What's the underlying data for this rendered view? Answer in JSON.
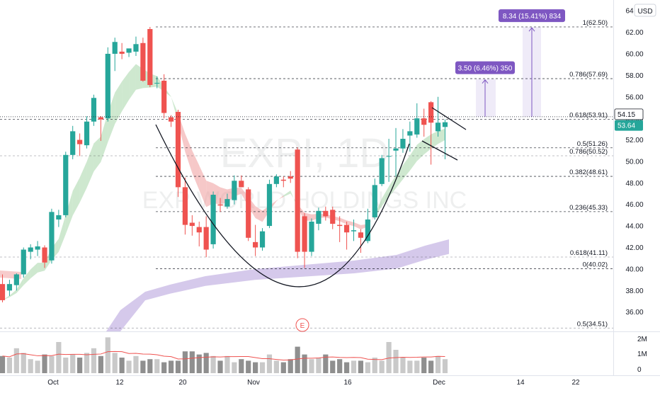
{
  "currency": "USD",
  "watermark": {
    "ticker": "EXPI, 1D",
    "name": "EXP WORLD HOLDINGS INC"
  },
  "earnings_marker": "E",
  "price_badges": [
    {
      "label": "54.15",
      "value": 54.15,
      "color": "#ffffff",
      "text_color": "#131722"
    },
    {
      "label": "53.64",
      "value": 53.64,
      "color": "#26a69a",
      "text_color": "#ffffff"
    }
  ],
  "measure_labels": [
    "3.50 (6.46%) 350",
    "8.34 (15.41%) 834"
  ],
  "colors": {
    "up": "#26a69a",
    "down": "#ef5350",
    "measure": "#7e57c2",
    "ema_band": "#a5d6a7",
    "ema_band_down": "#ef9a9a",
    "sma_band": "#b39ddb",
    "grid_text": "#131722"
  },
  "chart_data": {
    "type": "candlestick",
    "y_axis": {
      "range": [
        34.2,
        65.0
      ],
      "ticks": [
        36,
        38,
        40,
        42,
        44,
        46,
        48,
        50,
        52,
        54,
        56,
        58,
        60,
        62,
        64
      ]
    },
    "x_tick_labels": [
      "Oct",
      "12",
      "20",
      "Nov",
      "16",
      "Dec",
      "14",
      "22"
    ],
    "volume_axis": {
      "ticks": [
        "2M",
        "1M",
        "0"
      ]
    },
    "candles": [
      {
        "o": 38.6,
        "h": 39.5,
        "l": 36.9,
        "c": 37.1
      },
      {
        "o": 38.0,
        "h": 39.0,
        "l": 37.5,
        "c": 38.6
      },
      {
        "o": 38.5,
        "h": 39.6,
        "l": 38.0,
        "c": 39.5
      },
      {
        "o": 39.5,
        "h": 42.0,
        "l": 39.2,
        "c": 41.8
      },
      {
        "o": 41.6,
        "h": 42.3,
        "l": 40.9,
        "c": 42.0
      },
      {
        "o": 41.8,
        "h": 42.6,
        "l": 41.2,
        "c": 42.1
      },
      {
        "o": 42.0,
        "h": 42.2,
        "l": 40.1,
        "c": 40.6
      },
      {
        "o": 40.8,
        "h": 45.6,
        "l": 40.5,
        "c": 45.3
      },
      {
        "o": 44.6,
        "h": 45.5,
        "l": 43.9,
        "c": 45.0
      },
      {
        "o": 45.0,
        "h": 50.9,
        "l": 44.8,
        "c": 50.6
      },
      {
        "o": 50.6,
        "h": 53.3,
        "l": 50.2,
        "c": 52.8
      },
      {
        "o": 52.0,
        "h": 52.6,
        "l": 50.5,
        "c": 51.6
      },
      {
        "o": 51.5,
        "h": 54.2,
        "l": 51.2,
        "c": 53.7
      },
      {
        "o": 53.7,
        "h": 56.2,
        "l": 53.3,
        "c": 55.9
      },
      {
        "o": 54.1,
        "h": 54.2,
        "l": 51.9,
        "c": 53.9
      },
      {
        "o": 54.0,
        "h": 60.6,
        "l": 53.7,
        "c": 60.0
      },
      {
        "o": 60.0,
        "h": 61.5,
        "l": 58.4,
        "c": 61.1
      },
      {
        "o": 60.2,
        "h": 61.0,
        "l": 59.5,
        "c": 60.0
      },
      {
        "o": 60.1,
        "h": 60.4,
        "l": 59.7,
        "c": 60.5
      },
      {
        "o": 60.2,
        "h": 61.6,
        "l": 59.8,
        "c": 60.9
      },
      {
        "o": 61.0,
        "h": 61.5,
        "l": 57.4,
        "c": 57.5
      },
      {
        "o": 62.3,
        "h": 62.5,
        "l": 56.9,
        "c": 57.1
      },
      {
        "o": 57.3,
        "h": 57.9,
        "l": 56.8,
        "c": 57.3
      },
      {
        "o": 57.5,
        "h": 58.1,
        "l": 54.0,
        "c": 54.5
      },
      {
        "o": 54.1,
        "h": 54.3,
        "l": 53.2,
        "c": 53.7
      },
      {
        "o": 54.6,
        "h": 54.8,
        "l": 46.7,
        "c": 47.6
      },
      {
        "o": 47.6,
        "h": 48.5,
        "l": 43.2,
        "c": 44.1
      },
      {
        "o": 44.3,
        "h": 45.0,
        "l": 43.1,
        "c": 44.0
      },
      {
        "o": 43.9,
        "h": 44.4,
        "l": 42.1,
        "c": 43.4
      },
      {
        "o": 43.9,
        "h": 44.9,
        "l": 41.1,
        "c": 41.8
      },
      {
        "o": 42.3,
        "h": 47.2,
        "l": 41.9,
        "c": 46.9
      },
      {
        "o": 46.0,
        "h": 46.6,
        "l": 45.3,
        "c": 45.9
      },
      {
        "o": 45.8,
        "h": 47.0,
        "l": 45.6,
        "c": 46.5
      },
      {
        "o": 46.4,
        "h": 48.7,
        "l": 46.0,
        "c": 48.2
      },
      {
        "o": 48.2,
        "h": 48.7,
        "l": 47.6,
        "c": 47.6
      },
      {
        "o": 47.4,
        "h": 47.6,
        "l": 42.6,
        "c": 42.9
      },
      {
        "o": 42.5,
        "h": 44.1,
        "l": 41.2,
        "c": 42.0
      },
      {
        "o": 42.0,
        "h": 43.8,
        "l": 41.7,
        "c": 43.5
      },
      {
        "o": 44.0,
        "h": 48.3,
        "l": 43.8,
        "c": 47.9
      },
      {
        "o": 47.9,
        "h": 48.8,
        "l": 47.6,
        "c": 48.6
      },
      {
        "o": 48.3,
        "h": 48.6,
        "l": 47.6,
        "c": 48.2
      },
      {
        "o": 48.6,
        "h": 49.1,
        "l": 48.0,
        "c": 48.4
      },
      {
        "o": 51.1,
        "h": 51.3,
        "l": 41.0,
        "c": 41.6
      },
      {
        "o": 44.9,
        "h": 45.2,
        "l": 40.1,
        "c": 41.6
      },
      {
        "o": 41.6,
        "h": 44.7,
        "l": 41.2,
        "c": 44.4
      },
      {
        "o": 44.2,
        "h": 45.7,
        "l": 43.6,
        "c": 45.4
      },
      {
        "o": 45.4,
        "h": 45.8,
        "l": 44.5,
        "c": 44.9
      },
      {
        "o": 45.5,
        "h": 45.8,
        "l": 43.7,
        "c": 44.2
      },
      {
        "o": 44.1,
        "h": 44.9,
        "l": 42.5,
        "c": 44.0
      },
      {
        "o": 44.1,
        "h": 44.4,
        "l": 41.8,
        "c": 43.4
      },
      {
        "o": 43.5,
        "h": 44.6,
        "l": 42.6,
        "c": 43.6
      },
      {
        "o": 43.4,
        "h": 43.7,
        "l": 41.5,
        "c": 42.9
      },
      {
        "o": 42.6,
        "h": 45.6,
        "l": 42.4,
        "c": 44.6
      },
      {
        "o": 44.8,
        "h": 48.4,
        "l": 44.6,
        "c": 47.8
      },
      {
        "o": 47.9,
        "h": 50.6,
        "l": 47.7,
        "c": 50.3
      },
      {
        "o": 50.5,
        "h": 52.1,
        "l": 48.1,
        "c": 50.5
      },
      {
        "o": 51.0,
        "h": 53.1,
        "l": 48.6,
        "c": 51.2
      },
      {
        "o": 51.2,
        "h": 53.0,
        "l": 50.8,
        "c": 52.1
      },
      {
        "o": 52.4,
        "h": 53.7,
        "l": 50.9,
        "c": 52.8
      },
      {
        "o": 52.5,
        "h": 55.4,
        "l": 52.2,
        "c": 54.0
      },
      {
        "o": 54.0,
        "h": 54.9,
        "l": 52.3,
        "c": 53.4
      },
      {
        "o": 55.5,
        "h": 55.6,
        "l": 49.7,
        "c": 53.6
      },
      {
        "o": 52.8,
        "h": 56.0,
        "l": 52.3,
        "c": 53.6
      },
      {
        "o": 53.2,
        "h": 53.9,
        "l": 50.2,
        "c": 53.64
      }
    ],
    "volume": [
      1.1,
      1.0,
      1.6,
      1.3,
      0.9,
      0.8,
      1.2,
      1.1,
      2.0,
      1.0,
      1.2,
      1.0,
      1.3,
      1.6,
      1.1,
      2.3,
      1.3,
      1.0,
      0.8,
      1.1,
      0.8,
      0.9,
      0.9,
      0.7,
      0.8,
      0.8,
      1.4,
      1.4,
      1.2,
      1.3,
      1.1,
      0.8,
      1.1,
      0.7,
      0.9,
      0.8,
      0.7,
      0.7,
      1.2,
      0.8,
      0.7,
      0.9,
      1.7,
      1.2,
      0.9,
      1.0,
      1.2,
      0.8,
      0.9,
      0.7,
      0.8,
      0.8,
      0.7,
      1.0,
      0.8,
      2.0,
      1.5,
      1.0,
      0.8,
      0.8,
      1.0,
      0.8,
      1.1,
      0.9
    ],
    "fib_levels": [
      {
        "label": "1(62.50)",
        "value": 62.5
      },
      {
        "label": "0.786(57.69)",
        "value": 57.69
      },
      {
        "label": "0.618(53.91)",
        "value": 53.91
      },
      {
        "label": "0.5(51.26)",
        "value": 51.26
      },
      {
        "label": "0.786(50.52)",
        "value": 50.52
      },
      {
        "label": "0.382(48.61)",
        "value": 48.61
      },
      {
        "label": "0.236(45.33)",
        "value": 45.33
      },
      {
        "label": "0.618(41.11)",
        "value": 41.11
      },
      {
        "label": "0(40.02)",
        "value": 40.02
      },
      {
        "label": "0.5(34.51)",
        "value": 34.51
      }
    ],
    "measure_targets": [
      {
        "from": 54.15,
        "to": 57.65,
        "change": 3.5
      },
      {
        "from": 54.15,
        "to": 62.49,
        "change": 8.34
      }
    ]
  }
}
